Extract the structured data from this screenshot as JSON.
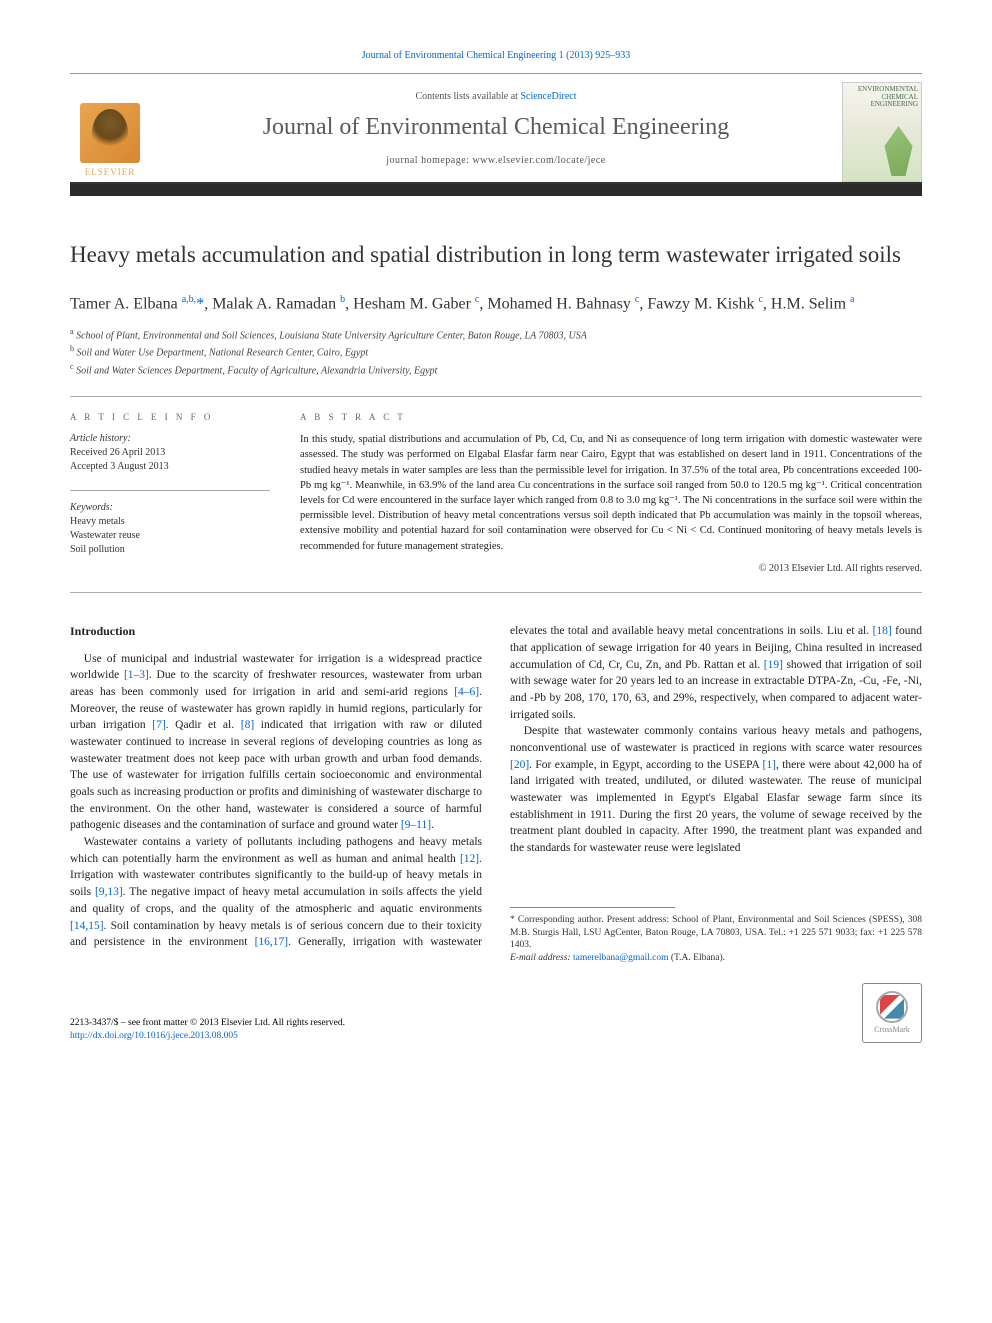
{
  "journal": {
    "header_link": "Journal of Environmental Chemical Engineering 1 (2013) 925–933",
    "contents_prefix": "Contents lists available at ",
    "contents_link": "ScienceDirect",
    "title": "Journal of Environmental Chemical Engineering",
    "homepage_prefix": "journal homepage: ",
    "homepage_url": "www.elsevier.com/locate/jece",
    "publisher": "ELSEVIER",
    "cover_text": "ENVIRONMENTAL CHEMICAL ENGINEERING"
  },
  "article": {
    "title": "Heavy metals accumulation and spatial distribution in long term wastewater irrigated soils",
    "authors_html": "Tamer A. Elbana <sup>a,b,</sup><span class='star'>*</span>, Malak A. Ramadan <sup>b</sup>, Hesham M. Gaber <sup>c</sup>, Mohamed H. Bahnasy <sup>c</sup>, Fawzy M. Kishk <sup>c</sup>, H.M. Selim <sup>a</sup>",
    "affiliations": [
      {
        "sup": "a",
        "text": "School of Plant, Environmental and Soil Sciences, Louisiana State University Agriculture Center, Baton Rouge, LA 70803, USA"
      },
      {
        "sup": "b",
        "text": "Soil and Water Use Department, National Research Center, Cairo, Egypt"
      },
      {
        "sup": "c",
        "text": "Soil and Water Sciences Department, Faculty of Agriculture, Alexandria University, Egypt"
      }
    ]
  },
  "info": {
    "heading": "A R T I C L E   I N F O",
    "history_label": "Article history:",
    "received": "Received 26 April 2013",
    "accepted": "Accepted 3 August 2013",
    "keywords_label": "Keywords:",
    "keywords": [
      "Heavy metals",
      "Wastewater reuse",
      "Soil pollution"
    ]
  },
  "abstract": {
    "heading": "A B S T R A C T",
    "text": "In this study, spatial distributions and accumulation of Pb, Cd, Cu, and Ni as consequence of long term irrigation with domestic wastewater were assessed. The study was performed on Elgabal Elasfar farm near Cairo, Egypt that was established on desert land in 1911. Concentrations of the studied heavy metals in water samples are less than the permissible level for irrigation. In 37.5% of the total area, Pb concentrations exceeded 100-Pb mg kg⁻¹. Meanwhile, in 63.9% of the land area Cu concentrations in the surface soil ranged from 50.0 to 120.5 mg kg⁻¹. Critical concentration levels for Cd were encountered in the surface layer which ranged from 0.8 to 3.0 mg kg⁻¹. The Ni concentrations in the surface soil were within the permissible level. Distribution of heavy metal concentrations versus soil depth indicated that Pb accumulation was mainly in the topsoil whereas, extensive mobility and potential hazard for soil contamination were observed for Cu < Ni < Cd. Continued monitoring of heavy metals levels is recommended for future management strategies.",
    "copyright": "© 2013 Elsevier Ltd. All rights reserved."
  },
  "body": {
    "intro_heading": "Introduction",
    "p1a": "Use of municipal and industrial wastewater for irrigation is a widespread practice worldwide ",
    "p1_r1": "[1–3]",
    "p1b": ". Due to the scarcity of freshwater resources, wastewater from urban areas has been commonly used for irrigation in arid and semi-arid regions ",
    "p1_r2": "[4–6]",
    "p1c": ". Moreover, the reuse of wastewater has grown rapidly in humid regions, particularly for urban irrigation ",
    "p1_r3": "[7]",
    "p1d": ". Qadir et al. ",
    "p1_r4": "[8]",
    "p1e": " indicated that irrigation with raw or diluted wastewater continued to increase in several regions of developing countries as long as wastewater treatment does not keep pace with urban growth and urban food demands. The use of wastewater for irrigation fulfills certain socioeconomic and environmental goals such as increasing production or profits and diminishing of wastewater discharge to the environment. On the other hand, wastewater is considered a source of harmful pathogenic diseases and the contamination of surface and ground water ",
    "p1_r5": "[9–11]",
    "p1f": ".",
    "p2a": "Wastewater contains a variety of pollutants including pathogens and heavy metals which can potentially harm the environment as well as human and animal health ",
    "p2_r1": "[12]",
    "p2b": ". Irrigation with wastewater contributes significantly to the build-up of heavy metals in soils ",
    "p2_r2": "[9,13]",
    "p2c": ". The negative impact of heavy metal accumulation in soils affects the yield and quality of crops, and the quality of the atmospheric and aquatic environments ",
    "p2_r3": "[14,15]",
    "p2d": ". Soil contamination by heavy metals is of serious concern due to their toxicity and persistence in the environment ",
    "p2_r4": "[16,17]",
    "p2e": ". Generally, irrigation with wastewater elevates the total and available heavy metal concentrations in soils. Liu et al. ",
    "p2_r5": "[18]",
    "p2f": " found that application of sewage irrigation for 40 years in Beijing, China resulted in increased accumulation of Cd, Cr, Cu, Zn, and Pb. Rattan et al. ",
    "p2_r6": "[19]",
    "p2g": " showed that irrigation of soil with sewage water for 20 years led to an increase in extractable DTPA-Zn, -Cu, -Fe, -Ni, and -Pb by 208, 170, 170, 63, and 29%, respectively, when compared to adjacent water-irrigated soils.",
    "p3a": "Despite that wastewater commonly contains various heavy metals and pathogens, nonconventional use of wastewater is practiced in regions with scarce water resources ",
    "p3_r1": "[20]",
    "p3b": ". For example, in Egypt, according to the USEPA ",
    "p3_r2": "[1]",
    "p3c": ", there were about 42,000 ha of land irrigated with treated, undiluted, or diluted wastewater. The reuse of municipal wastewater was implemented in Egypt's Elgabal Elasfar sewage farm since its establishment in 1911. During the first 20 years, the volume of sewage received by the treatment plant doubled in capacity. After 1990, the treatment plant was expanded and the standards for wastewater reuse were legislated"
  },
  "footnotes": {
    "corr": "* Corresponding author. Present address: School of Plant, Environmental and Soil Sciences (SPESS), 308 M.B. Sturgis Hall, LSU AgCenter, Baton Rouge, LA 70803, USA. Tel.: +1 225 571 9033; fax: +1 225 578 1403.",
    "email_label": "E-mail address: ",
    "email": "tamerelbana@gmail.com",
    "email_suffix": " (T.A. Elbana)."
  },
  "footer": {
    "issn_line": "2213-3437/$ – see front matter © 2013 Elsevier Ltd. All rights reserved.",
    "doi": "http://dx.doi.org/10.1016/j.jece.2013.08.005",
    "crossmark": "CrossMark"
  },
  "colors": {
    "link": "#0066cc",
    "text": "#222222",
    "elsevier_orange": "#e8a552",
    "rule": "#aaaaaa"
  }
}
